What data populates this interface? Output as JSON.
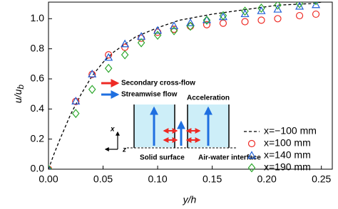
{
  "chart_data": {
    "type": "scatter",
    "x_label": "y/h",
    "y_label": {
      "main": "u/u",
      "sub": "b"
    },
    "xlim": [
      0,
      0.26
    ],
    "ylim": [
      0,
      1.11
    ],
    "xticks": [
      {
        "value": 0,
        "label": "0.00"
      },
      0.05,
      {
        "value": 0.1,
        "label": "0.10"
      },
      0.15,
      {
        "value": 0.2,
        "label": "0.20"
      },
      0.25
    ],
    "yticks": [
      {
        "value": 0,
        "label": "0.0"
      },
      0.2,
      0.4,
      0.6,
      0.8,
      {
        "value": 1,
        "label": "1.0"
      }
    ],
    "legend": "lower right",
    "series": [
      {
        "name": "x=−100 mm",
        "color": "#000000",
        "style": "dashed",
        "x": [
          0,
          0.005,
          0.01,
          0.02,
          0.03,
          0.04,
          0.05,
          0.06,
          0.08,
          0.1,
          0.12,
          0.15,
          0.18,
          0.21,
          0.24,
          0.25
        ],
        "values": [
          0,
          0.1,
          0.19,
          0.36,
          0.5,
          0.62,
          0.71,
          0.78,
          0.88,
          0.94,
          0.99,
          1.03,
          1.06,
          1.09,
          1.1,
          1.11
        ]
      },
      {
        "name": "x=100 mm",
        "color": "#ee2a24",
        "marker": "circle",
        "x": [
          0,
          0.025,
          0.04,
          0.055,
          0.07,
          0.085,
          0.1,
          0.115,
          0.13,
          0.145,
          0.16,
          0.18,
          0.195,
          0.21,
          0.23,
          0.245
        ],
        "values": [
          0,
          0.45,
          0.63,
          0.76,
          0.81,
          0.87,
          0.91,
          0.93,
          0.95,
          0.96,
          0.97,
          0.98,
          0.99,
          1.0,
          1.02,
          1.03
        ]
      },
      {
        "name": "x=140 mm",
        "color": "#1f5fd6",
        "marker": "triangle",
        "x": [
          0,
          0.025,
          0.04,
          0.055,
          0.07,
          0.085,
          0.1,
          0.115,
          0.13,
          0.145,
          0.16,
          0.18,
          0.195,
          0.21,
          0.23,
          0.245
        ],
        "values": [
          0,
          0.45,
          0.63,
          0.74,
          0.83,
          0.88,
          0.92,
          0.95,
          0.97,
          0.99,
          1.01,
          1.03,
          1.05,
          1.06,
          1.08,
          1.09
        ]
      },
      {
        "name": "x=190 mm",
        "color": "#2ea82e",
        "marker": "diamond",
        "x": [
          0,
          0.025,
          0.04,
          0.055,
          0.07,
          0.085,
          0.1,
          0.115,
          0.13,
          0.145,
          0.16,
          0.18,
          0.195,
          0.21,
          0.23,
          0.245
        ],
        "values": [
          0,
          0.37,
          0.53,
          0.67,
          0.76,
          0.84,
          0.89,
          0.92,
          0.95,
          0.99,
          1.02,
          1.05,
          1.07,
          1.09,
          1.1,
          1.12
        ]
      }
    ],
    "inset": {
      "secondary_label": "Secondary cross-flow",
      "streamwise_label": "Streamwise flow",
      "acceleration": "Acceleration",
      "axis_x": "x",
      "axis_z": "z",
      "solid_surface": "Solid surface",
      "interface": "Air-water interface"
    }
  }
}
